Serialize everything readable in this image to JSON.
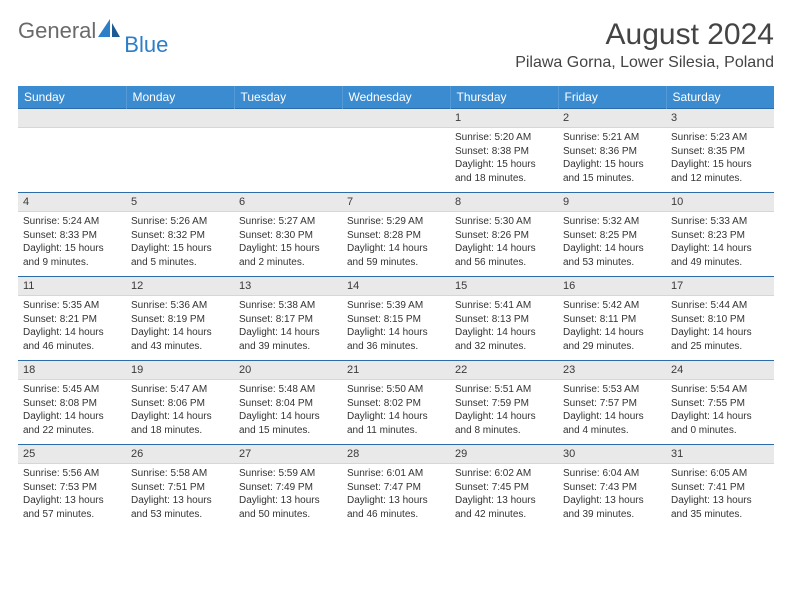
{
  "logo": {
    "textGray": "General",
    "textBlue": "Blue"
  },
  "title": "August 2024",
  "location": "Pilawa Gorna, Lower Silesia, Poland",
  "colors": {
    "headerBar": "#3a8bd0",
    "headerText": "#ffffff",
    "dayNumBg": "#e9e9e9",
    "rowBorder": "#2c6ca8",
    "bodyText": "#333333",
    "logoGray": "#6a6a6a",
    "logoBlue": "#2c7ec9",
    "pageBg": "#ffffff"
  },
  "typography": {
    "titleSize": 30,
    "locationSize": 16,
    "dayHeaderSize": 12,
    "dayNumSize": 11,
    "cellSize": 10,
    "logoSize": 22
  },
  "layout": {
    "columns": 7,
    "rows": 5,
    "cellHeightPx": 62
  },
  "dayHeaders": [
    "Sunday",
    "Monday",
    "Tuesday",
    "Wednesday",
    "Thursday",
    "Friday",
    "Saturday"
  ],
  "weeks": [
    [
      null,
      null,
      null,
      null,
      {
        "n": "1",
        "sr": "5:20 AM",
        "ss": "8:38 PM",
        "dl": "15 hours and 18 minutes."
      },
      {
        "n": "2",
        "sr": "5:21 AM",
        "ss": "8:36 PM",
        "dl": "15 hours and 15 minutes."
      },
      {
        "n": "3",
        "sr": "5:23 AM",
        "ss": "8:35 PM",
        "dl": "15 hours and 12 minutes."
      }
    ],
    [
      {
        "n": "4",
        "sr": "5:24 AM",
        "ss": "8:33 PM",
        "dl": "15 hours and 9 minutes."
      },
      {
        "n": "5",
        "sr": "5:26 AM",
        "ss": "8:32 PM",
        "dl": "15 hours and 5 minutes."
      },
      {
        "n": "6",
        "sr": "5:27 AM",
        "ss": "8:30 PM",
        "dl": "15 hours and 2 minutes."
      },
      {
        "n": "7",
        "sr": "5:29 AM",
        "ss": "8:28 PM",
        "dl": "14 hours and 59 minutes."
      },
      {
        "n": "8",
        "sr": "5:30 AM",
        "ss": "8:26 PM",
        "dl": "14 hours and 56 minutes."
      },
      {
        "n": "9",
        "sr": "5:32 AM",
        "ss": "8:25 PM",
        "dl": "14 hours and 53 minutes."
      },
      {
        "n": "10",
        "sr": "5:33 AM",
        "ss": "8:23 PM",
        "dl": "14 hours and 49 minutes."
      }
    ],
    [
      {
        "n": "11",
        "sr": "5:35 AM",
        "ss": "8:21 PM",
        "dl": "14 hours and 46 minutes."
      },
      {
        "n": "12",
        "sr": "5:36 AM",
        "ss": "8:19 PM",
        "dl": "14 hours and 43 minutes."
      },
      {
        "n": "13",
        "sr": "5:38 AM",
        "ss": "8:17 PM",
        "dl": "14 hours and 39 minutes."
      },
      {
        "n": "14",
        "sr": "5:39 AM",
        "ss": "8:15 PM",
        "dl": "14 hours and 36 minutes."
      },
      {
        "n": "15",
        "sr": "5:41 AM",
        "ss": "8:13 PM",
        "dl": "14 hours and 32 minutes."
      },
      {
        "n": "16",
        "sr": "5:42 AM",
        "ss": "8:11 PM",
        "dl": "14 hours and 29 minutes."
      },
      {
        "n": "17",
        "sr": "5:44 AM",
        "ss": "8:10 PM",
        "dl": "14 hours and 25 minutes."
      }
    ],
    [
      {
        "n": "18",
        "sr": "5:45 AM",
        "ss": "8:08 PM",
        "dl": "14 hours and 22 minutes."
      },
      {
        "n": "19",
        "sr": "5:47 AM",
        "ss": "8:06 PM",
        "dl": "14 hours and 18 minutes."
      },
      {
        "n": "20",
        "sr": "5:48 AM",
        "ss": "8:04 PM",
        "dl": "14 hours and 15 minutes."
      },
      {
        "n": "21",
        "sr": "5:50 AM",
        "ss": "8:02 PM",
        "dl": "14 hours and 11 minutes."
      },
      {
        "n": "22",
        "sr": "5:51 AM",
        "ss": "7:59 PM",
        "dl": "14 hours and 8 minutes."
      },
      {
        "n": "23",
        "sr": "5:53 AM",
        "ss": "7:57 PM",
        "dl": "14 hours and 4 minutes."
      },
      {
        "n": "24",
        "sr": "5:54 AM",
        "ss": "7:55 PM",
        "dl": "14 hours and 0 minutes."
      }
    ],
    [
      {
        "n": "25",
        "sr": "5:56 AM",
        "ss": "7:53 PM",
        "dl": "13 hours and 57 minutes."
      },
      {
        "n": "26",
        "sr": "5:58 AM",
        "ss": "7:51 PM",
        "dl": "13 hours and 53 minutes."
      },
      {
        "n": "27",
        "sr": "5:59 AM",
        "ss": "7:49 PM",
        "dl": "13 hours and 50 minutes."
      },
      {
        "n": "28",
        "sr": "6:01 AM",
        "ss": "7:47 PM",
        "dl": "13 hours and 46 minutes."
      },
      {
        "n": "29",
        "sr": "6:02 AM",
        "ss": "7:45 PM",
        "dl": "13 hours and 42 minutes."
      },
      {
        "n": "30",
        "sr": "6:04 AM",
        "ss": "7:43 PM",
        "dl": "13 hours and 39 minutes."
      },
      {
        "n": "31",
        "sr": "6:05 AM",
        "ss": "7:41 PM",
        "dl": "13 hours and 35 minutes."
      }
    ]
  ],
  "labels": {
    "sunrise": "Sunrise:",
    "sunset": "Sunset:",
    "daylight": "Daylight:"
  }
}
